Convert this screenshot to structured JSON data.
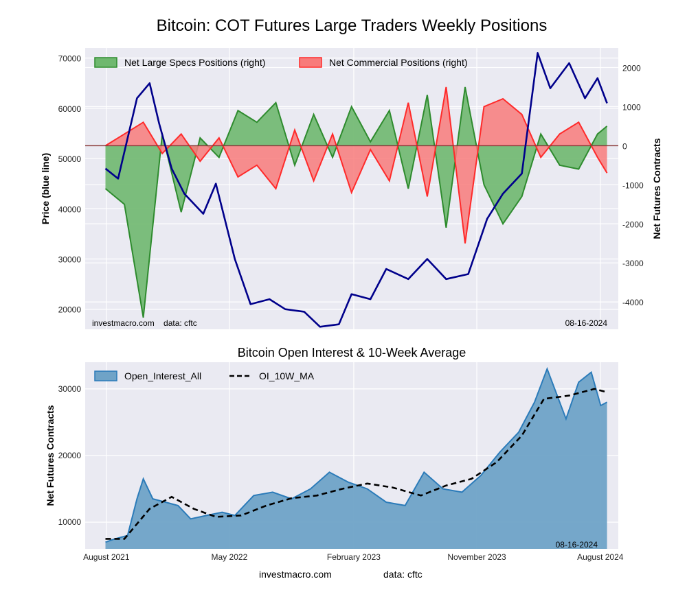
{
  "title": "Bitcoin: COT Futures Large Traders Weekly Positions",
  "footer": {
    "site": "investmacro.com",
    "data": "data: cftc"
  },
  "chart_data": [
    {
      "type": "line",
      "title": "Bitcoin: COT Futures Large Traders Weekly Positions",
      "ylabel_left": "Price (blue line)",
      "ylabel_right": "Net Futures Contracts",
      "ylim_left": [
        16000,
        72000
      ],
      "ylim_right": [
        -4700,
        2500
      ],
      "yticks_left": [
        "20000",
        "30000",
        "40000",
        "50000",
        "60000",
        "70000"
      ],
      "yticks_right": [
        "2000",
        "1000",
        "0",
        "-1000",
        "-2000",
        "-3000",
        "-4000"
      ],
      "grid": true,
      "legend_position": "top",
      "annotations": {
        "left": "investmacro.com    data: cftc",
        "right": "08-16-2024"
      },
      "colors": {
        "price": "#00008b",
        "specs": "#2e8b2e",
        "specs_fill": "#6fb86f",
        "comm": "#ff2a2a",
        "comm_fill": "#f87b7b",
        "bg": "#eaeaf2"
      },
      "series": [
        {
          "name": "Net Large Specs Positions (right)",
          "axis": "right",
          "x": [
            "2021-07-30",
            "2021-09-10",
            "2021-10-22",
            "2021-12-03",
            "2022-01-14",
            "2022-02-25",
            "2022-04-08",
            "2022-05-20",
            "2022-07-01",
            "2022-08-12",
            "2022-09-23",
            "2022-11-04",
            "2022-12-16",
            "2023-01-27",
            "2023-03-10",
            "2023-04-21",
            "2023-06-02",
            "2023-07-14",
            "2023-08-25",
            "2023-10-06",
            "2023-11-17",
            "2023-12-29",
            "2024-02-09",
            "2024-03-22",
            "2024-05-03",
            "2024-06-14",
            "2024-07-26",
            "2024-08-16"
          ],
          "values": [
            -1100,
            -1500,
            -4400,
            300,
            -1700,
            200,
            -300,
            900,
            600,
            1100,
            -500,
            800,
            -300,
            1000,
            100,
            900,
            -1100,
            1300,
            -2100,
            1500,
            -1000,
            -2000,
            -1300,
            300,
            -500,
            -600,
            300,
            500
          ]
        },
        {
          "name": "Net Commercial Positions (right)",
          "axis": "right",
          "x": [
            "2021-07-30",
            "2021-09-10",
            "2021-10-22",
            "2021-12-03",
            "2022-01-14",
            "2022-02-25",
            "2022-04-08",
            "2022-05-20",
            "2022-07-01",
            "2022-08-12",
            "2022-09-23",
            "2022-11-04",
            "2022-12-16",
            "2023-01-27",
            "2023-03-10",
            "2023-04-21",
            "2023-06-02",
            "2023-07-14",
            "2023-08-25",
            "2023-10-06",
            "2023-11-17",
            "2023-12-29",
            "2024-02-09",
            "2024-03-22",
            "2024-05-03",
            "2024-06-14",
            "2024-07-26",
            "2024-08-16"
          ],
          "values": [
            0,
            300,
            600,
            -200,
            300,
            -400,
            200,
            -800,
            -500,
            -1100,
            400,
            -900,
            300,
            -1200,
            -100,
            -900,
            1100,
            -1300,
            1500,
            -2500,
            1000,
            1200,
            800,
            -300,
            300,
            600,
            -300,
            -700
          ]
        },
        {
          "name": "Price",
          "axis": "left",
          "x": [
            "2021-07-30",
            "2021-08-27",
            "2021-10-08",
            "2021-11-05",
            "2021-11-26",
            "2021-12-24",
            "2022-01-21",
            "2022-03-04",
            "2022-04-01",
            "2022-05-13",
            "2022-06-17",
            "2022-07-29",
            "2022-09-02",
            "2022-10-14",
            "2022-11-18",
            "2022-12-30",
            "2023-01-27",
            "2023-03-10",
            "2023-04-14",
            "2023-06-02",
            "2023-07-14",
            "2023-08-25",
            "2023-10-13",
            "2023-11-24",
            "2023-12-29",
            "2024-02-09",
            "2024-03-15",
            "2024-04-12",
            "2024-05-24",
            "2024-06-28",
            "2024-07-26",
            "2024-08-16"
          ],
          "values": [
            48000,
            46000,
            62000,
            65000,
            57000,
            48000,
            43000,
            39000,
            45000,
            30000,
            21000,
            22000,
            20000,
            19500,
            16500,
            17000,
            23000,
            22000,
            28000,
            26000,
            30000,
            26000,
            27000,
            38000,
            43000,
            47000,
            71000,
            64000,
            69000,
            62000,
            66000,
            61000
          ]
        }
      ]
    },
    {
      "type": "area",
      "title": "Bitcoin Open Interest & 10-Week Average",
      "ylabel": "Net Futures Contracts",
      "ylim": [
        6000,
        34000
      ],
      "yticks": [
        "10000",
        "20000",
        "30000"
      ],
      "xticks": [
        "August 2021",
        "May 2022",
        "February 2023",
        "November 2023",
        "August 2024"
      ],
      "grid": true,
      "legend_position": "top-left",
      "annotations": {
        "right": "08-16-2024"
      },
      "colors": {
        "oi_fill": "#6fa3c7",
        "oi_line": "#2b7bb9",
        "ma": "#000000",
        "bg": "#eaeaf2"
      },
      "series": [
        {
          "name": "Open_Interest_All",
          "x": [
            "2021-07-30",
            "2021-08-20",
            "2021-09-17",
            "2021-10-08",
            "2021-10-22",
            "2021-11-12",
            "2021-12-10",
            "2022-01-07",
            "2022-02-04",
            "2022-03-11",
            "2022-04-15",
            "2022-05-13",
            "2022-06-24",
            "2022-08-05",
            "2022-09-16",
            "2022-10-28",
            "2022-12-09",
            "2023-01-20",
            "2023-03-03",
            "2023-04-14",
            "2023-05-26",
            "2023-07-07",
            "2023-08-18",
            "2023-09-29",
            "2023-11-10",
            "2023-12-22",
            "2024-02-02",
            "2024-03-08",
            "2024-04-05",
            "2024-05-17",
            "2024-06-14",
            "2024-07-12",
            "2024-08-02",
            "2024-08-16"
          ],
          "values": [
            7000,
            7500,
            8000,
            13500,
            16500,
            13500,
            13000,
            12500,
            10500,
            11000,
            11500,
            11000,
            14000,
            14500,
            13500,
            15000,
            17500,
            16000,
            15000,
            13000,
            12500,
            17500,
            15000,
            14500,
            17000,
            20500,
            23500,
            28000,
            33000,
            25500,
            31000,
            32500,
            27500,
            28000
          ]
        },
        {
          "name": "OI_10W_MA",
          "x": [
            "2021-07-30",
            "2021-09-10",
            "2021-11-05",
            "2021-12-24",
            "2022-02-11",
            "2022-04-01",
            "2022-05-27",
            "2022-07-22",
            "2022-09-16",
            "2022-11-11",
            "2023-01-06",
            "2023-03-03",
            "2023-04-28",
            "2023-06-30",
            "2023-08-25",
            "2023-10-20",
            "2023-12-15",
            "2024-02-09",
            "2024-03-29",
            "2024-05-24",
            "2024-07-19",
            "2024-08-16"
          ],
          "values": [
            7500,
            7500,
            12000,
            13800,
            12000,
            10800,
            11000,
            12500,
            13600,
            14000,
            15000,
            15800,
            15200,
            14000,
            15500,
            16500,
            19000,
            23000,
            28500,
            29000,
            30000,
            29500
          ]
        }
      ]
    }
  ]
}
